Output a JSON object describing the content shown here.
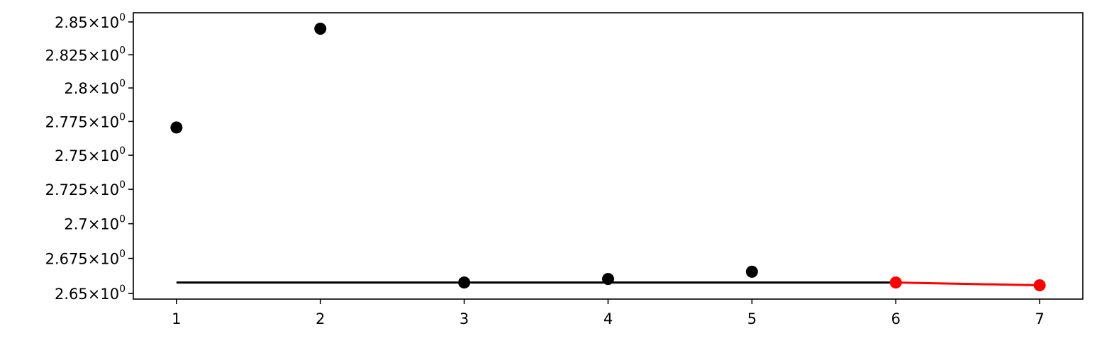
{
  "chart_data": {
    "type": "scatter",
    "title": "",
    "xlabel": "",
    "ylabel": "",
    "yscale": "log",
    "xlim": [
      0.7,
      7.3
    ],
    "ylim": [
      2.646,
      2.857
    ],
    "grid": false,
    "x_ticks": [
      1,
      2,
      3,
      4,
      5,
      6,
      7
    ],
    "x_tick_labels": [
      "1",
      "2",
      "3",
      "4",
      "5",
      "6",
      "7"
    ],
    "y_ticks": [
      2.65,
      2.675,
      2.7,
      2.725,
      2.75,
      2.775,
      2.8,
      2.825,
      2.85
    ],
    "y_tick_labels": [
      {
        "mantissa": "2.65",
        "base": "10",
        "exponent": "0"
      },
      {
        "mantissa": "2.675",
        "base": "10",
        "exponent": "0"
      },
      {
        "mantissa": "2.7",
        "base": "10",
        "exponent": "0"
      },
      {
        "mantissa": "2.725",
        "base": "10",
        "exponent": "0"
      },
      {
        "mantissa": "2.75",
        "base": "10",
        "exponent": "0"
      },
      {
        "mantissa": "2.775",
        "base": "10",
        "exponent": "0"
      },
      {
        "mantissa": "2.8",
        "base": "10",
        "exponent": "0"
      },
      {
        "mantissa": "2.825",
        "base": "10",
        "exponent": "0"
      },
      {
        "mantissa": "2.85",
        "base": "10",
        "exponent": "0"
      }
    ],
    "series": [
      {
        "color": "#000000",
        "style": "markers",
        "x": [
          1,
          2,
          3,
          4,
          5
        ],
        "y": [
          2.7705,
          2.8448,
          2.6578,
          2.6603,
          2.6655
        ]
      },
      {
        "color": "#000000",
        "style": "line",
        "x": [
          1,
          6
        ],
        "y": [
          2.6578,
          2.6578
        ]
      },
      {
        "color": "#ff0000",
        "style": "line+markers",
        "x": [
          6,
          7
        ],
        "y": [
          2.6578,
          2.6558
        ]
      }
    ]
  }
}
